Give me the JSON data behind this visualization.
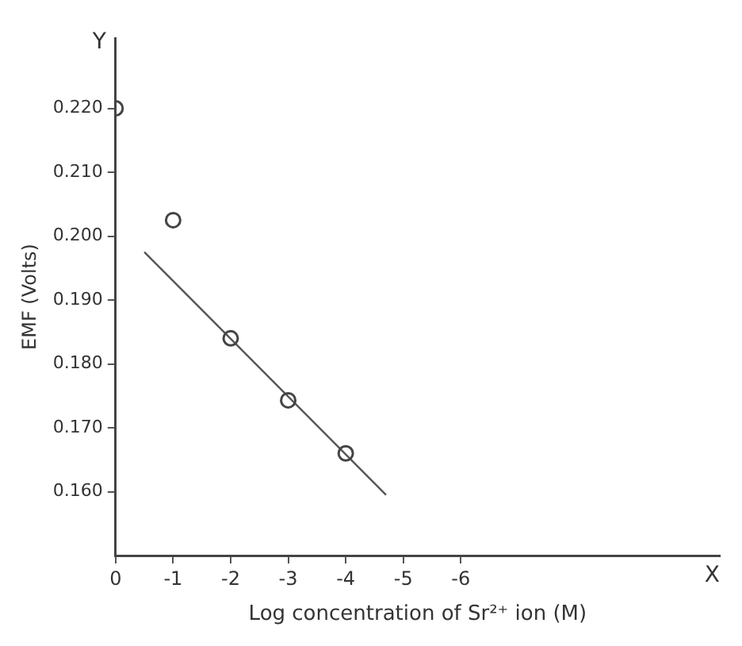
{
  "chart_data": {
    "type": "scatter",
    "xlabel": "Log concentration of Sr²⁺ ion (M)",
    "ylabel": "EMF (Volts)",
    "annotations": [
      "Y",
      "X"
    ],
    "xlim": [
      0,
      -10.5
    ],
    "xticks": [
      0,
      -1,
      -2,
      -3,
      -4,
      -5,
      -6
    ],
    "ylim": [
      0.15,
      0.231
    ],
    "yticks": [
      {
        "value": 0.16,
        "label": "0.160"
      },
      {
        "value": 0.17,
        "label": "0.170"
      },
      {
        "value": 0.18,
        "label": "0.180"
      },
      {
        "value": 0.19,
        "label": "0.190"
      },
      {
        "value": 0.2,
        "label": "0.200"
      },
      {
        "value": 0.21,
        "label": "0.210"
      },
      {
        "value": 0.22,
        "label": "0.220"
      }
    ],
    "grid": false,
    "series": [
      {
        "type": "scatter",
        "color": "#444444",
        "marker": "circle",
        "x": [
          0,
          -1,
          -2,
          -3,
          -4
        ],
        "values": [
          0.22,
          0.2025,
          0.184,
          0.1743,
          0.166
        ]
      },
      {
        "type": "line",
        "color": "#555555",
        "marker": "none",
        "x": [
          -0.5,
          -4.7
        ],
        "values": [
          0.1975,
          0.1595
        ]
      }
    ]
  }
}
